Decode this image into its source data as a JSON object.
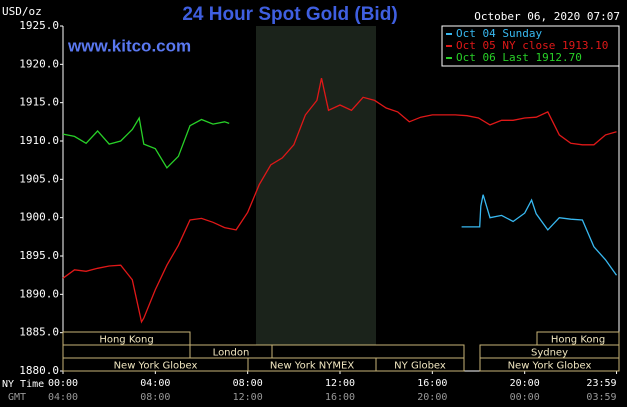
{
  "chart_data": {
    "type": "line",
    "title": "24 Hour Spot Gold (Bid)",
    "date": "October 06, 2020 07:07",
    "watermark": "www.kitco.com",
    "y_label": "USD/oz",
    "x_label": "NY Time",
    "x2_label": "GMT",
    "xlim": [
      0,
      24
    ],
    "xticks": [
      {
        "value": 0,
        "label": "00:00"
      },
      {
        "value": 4,
        "label": "04:00"
      },
      {
        "value": 8,
        "label": "08:00"
      },
      {
        "value": 12,
        "label": "12:00"
      },
      {
        "value": 16,
        "label": "16:00"
      },
      {
        "value": 20,
        "label": "20:00"
      },
      {
        "value": 23.98,
        "label": "23:59"
      }
    ],
    "x2_tick_labels": [
      "04:00",
      "08:00",
      "12:00",
      "16:00",
      "20:00",
      "00:00",
      "03:59"
    ],
    "ylim": [
      1880,
      1925
    ],
    "yticks": [
      {
        "value": 1880,
        "label": "1880.0"
      },
      {
        "value": 1885,
        "label": "1885.0"
      },
      {
        "value": 1890,
        "label": "1890.0"
      },
      {
        "value": 1895,
        "label": "1895.0"
      },
      {
        "value": 1900,
        "label": "1900.0"
      },
      {
        "value": 1905,
        "label": "1905.0"
      },
      {
        "value": 1910,
        "label": "1910.0"
      },
      {
        "value": 1915,
        "label": "1915.0"
      },
      {
        "value": 1920,
        "label": "1920.0"
      },
      {
        "value": 1925,
        "label": "1925.0"
      }
    ],
    "sessions": [
      "Hong Kong",
      "Hong Kong",
      "London",
      "Sydney",
      "New York Globex",
      "New York NYMEX",
      "NY Globex",
      "New York Globex"
    ],
    "series": [
      {
        "name": "Oct 04 Sunday",
        "color": "#38b8f0",
        "x": [
          17.27,
          18.05,
          18.1,
          18.2,
          18.5,
          19,
          19.5,
          20,
          20.3,
          20.5,
          21,
          21.5,
          22,
          22.5,
          23,
          23.5,
          23.98
        ],
        "values": [
          1898.8,
          1898.8,
          1901.5,
          1903.0,
          1900.0,
          1900.3,
          1899.5,
          1900.6,
          1902.3,
          1900.5,
          1898.4,
          1900.0,
          1899.8,
          1899.7,
          1896.2,
          1894.5,
          1892.5
        ]
      },
      {
        "name": "Oct 05 NY close 1913.10",
        "color": "#e01818",
        "x": [
          0,
          0.5,
          1,
          1.5,
          2,
          2.5,
          3,
          3.4,
          3.5,
          4,
          4.5,
          5,
          5.5,
          6,
          6.5,
          7,
          7.5,
          8,
          8.5,
          9,
          9.5,
          10,
          10.5,
          11,
          11.2,
          11.5,
          12,
          12.5,
          13,
          13.5,
          14,
          14.5,
          15,
          15.5,
          16,
          16.5,
          17,
          17.5,
          18,
          18.5,
          19,
          19.5,
          20,
          20.5,
          21,
          21.5,
          22,
          22.5,
          23,
          23.5,
          23.98
        ],
        "values": [
          1892.1,
          1893.2,
          1893.0,
          1893.4,
          1893.7,
          1893.8,
          1891.9,
          1886.4,
          1886.9,
          1890.6,
          1893.8,
          1896.4,
          1899.7,
          1899.9,
          1899.4,
          1898.7,
          1898.4,
          1900.7,
          1904.3,
          1906.9,
          1907.8,
          1909.5,
          1913.4,
          1915.3,
          1918.2,
          1914.0,
          1914.7,
          1914.0,
          1915.7,
          1915.3,
          1914.3,
          1913.8,
          1912.5,
          1913.1,
          1913.4,
          1913.4,
          1913.4,
          1913.3,
          1913.0,
          1912.1,
          1912.7,
          1912.7,
          1913.0,
          1913.1,
          1913.8,
          1910.8,
          1909.7,
          1909.5,
          1909.5,
          1910.8,
          1911.2
        ]
      },
      {
        "name": "Oct 06 Last 1912.70",
        "color": "#28d028",
        "x": [
          0,
          0.5,
          1,
          1.5,
          2,
          2.5,
          3,
          3.3,
          3.5,
          4,
          4.5,
          5,
          5.5,
          6,
          6.5,
          7,
          7.2
        ],
        "values": [
          1910.9,
          1910.6,
          1909.7,
          1911.3,
          1909.6,
          1910.0,
          1911.5,
          1913.0,
          1909.6,
          1909.0,
          1906.5,
          1908.0,
          1912.0,
          1912.8,
          1912.2,
          1912.5,
          1912.3
        ]
      }
    ]
  }
}
